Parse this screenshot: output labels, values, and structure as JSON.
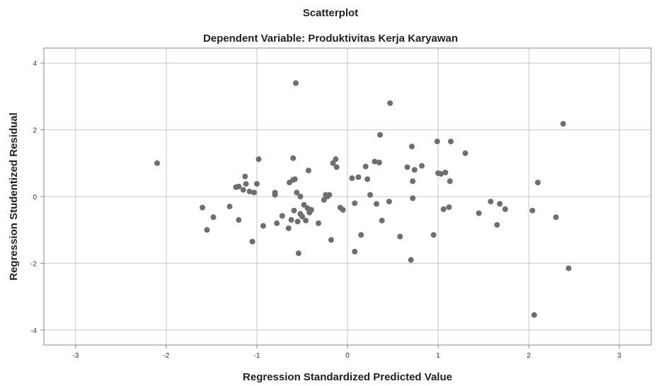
{
  "chart_data": {
    "type": "scatter",
    "title": "Scatterplot",
    "subtitle": "Dependent Variable: Produktivitas Kerja Karyawan",
    "xlabel": "Regression Standardized Predicted Value",
    "ylabel": "Regression Studentized Residual",
    "xlim": [
      -3.35,
      3.35
    ],
    "ylim": [
      -4.45,
      4.45
    ],
    "xticks": [
      -3,
      -2,
      -1,
      0,
      1,
      2,
      3
    ],
    "yticks": [
      -4,
      -2,
      0,
      2,
      4
    ],
    "grid": true,
    "point_color": "#6e6e6e",
    "grid_color": "#c8c8c8",
    "points": [
      [
        -2.1,
        1.0
      ],
      [
        -1.6,
        -0.33
      ],
      [
        -1.55,
        -1.0
      ],
      [
        -1.48,
        -0.62
      ],
      [
        -1.3,
        -0.3
      ],
      [
        -1.23,
        0.28
      ],
      [
        -1.2,
        0.3
      ],
      [
        -1.2,
        -0.7
      ],
      [
        -1.15,
        0.2
      ],
      [
        -1.13,
        0.6
      ],
      [
        -1.12,
        0.38
      ],
      [
        -1.08,
        0.15
      ],
      [
        -1.05,
        -1.35
      ],
      [
        -1.03,
        0.12
      ],
      [
        -1.0,
        0.38
      ],
      [
        -0.98,
        1.12
      ],
      [
        -0.93,
        -0.88
      ],
      [
        -0.8,
        0.12
      ],
      [
        -0.8,
        0.05
      ],
      [
        -0.78,
        -0.8
      ],
      [
        -0.72,
        -0.58
      ],
      [
        -0.65,
        -0.95
      ],
      [
        -0.64,
        0.42
      ],
      [
        -0.62,
        -0.7
      ],
      [
        -0.6,
        1.15
      ],
      [
        -0.6,
        0.5
      ],
      [
        -0.59,
        -0.42
      ],
      [
        -0.58,
        0.52
      ],
      [
        -0.57,
        3.4
      ],
      [
        -0.56,
        0.12
      ],
      [
        -0.55,
        -0.75
      ],
      [
        -0.54,
        -1.7
      ],
      [
        -0.52,
        -0.52
      ],
      [
        -0.52,
        0.0
      ],
      [
        -0.5,
        -0.6
      ],
      [
        -0.48,
        -0.25
      ],
      [
        -0.46,
        -0.72
      ],
      [
        -0.44,
        -0.35
      ],
      [
        -0.43,
        0.78
      ],
      [
        -0.42,
        -0.48
      ],
      [
        -0.4,
        -0.4
      ],
      [
        -0.32,
        -0.8
      ],
      [
        -0.26,
        -0.1
      ],
      [
        -0.24,
        0.05
      ],
      [
        -0.22,
        0.0
      ],
      [
        -0.2,
        0.05
      ],
      [
        -0.18,
        -1.3
      ],
      [
        -0.16,
        1.0
      ],
      [
        -0.13,
        1.12
      ],
      [
        -0.12,
        0.88
      ],
      [
        -0.08,
        -0.33
      ],
      [
        -0.05,
        -0.4
      ],
      [
        0.05,
        0.55
      ],
      [
        0.08,
        -1.65
      ],
      [
        0.08,
        -0.2
      ],
      [
        0.12,
        0.58
      ],
      [
        0.15,
        -1.15
      ],
      [
        0.2,
        0.9
      ],
      [
        0.22,
        0.52
      ],
      [
        0.25,
        0.05
      ],
      [
        0.3,
        1.05
      ],
      [
        0.32,
        -0.22
      ],
      [
        0.35,
        1.02
      ],
      [
        0.36,
        1.85
      ],
      [
        0.38,
        -0.72
      ],
      [
        0.46,
        -0.15
      ],
      [
        0.47,
        2.8
      ],
      [
        0.58,
        -1.2
      ],
      [
        0.66,
        0.88
      ],
      [
        0.7,
        -1.9
      ],
      [
        0.71,
        1.5
      ],
      [
        0.72,
        0.46
      ],
      [
        0.72,
        -0.05
      ],
      [
        0.74,
        0.8
      ],
      [
        0.82,
        0.92
      ],
      [
        0.95,
        -1.15
      ],
      [
        0.99,
        1.65
      ],
      [
        1.0,
        0.7
      ],
      [
        1.03,
        0.68
      ],
      [
        1.06,
        -0.38
      ],
      [
        1.08,
        0.72
      ],
      [
        1.12,
        -0.32
      ],
      [
        1.13,
        0.46
      ],
      [
        1.14,
        1.65
      ],
      [
        1.3,
        1.3
      ],
      [
        1.45,
        -0.5
      ],
      [
        1.58,
        -0.15
      ],
      [
        1.65,
        -0.85
      ],
      [
        1.68,
        -0.22
      ],
      [
        1.74,
        -0.38
      ],
      [
        2.04,
        -0.42
      ],
      [
        2.06,
        -3.55
      ],
      [
        2.1,
        0.42
      ],
      [
        2.3,
        -0.62
      ],
      [
        2.38,
        2.18
      ],
      [
        2.44,
        -2.15
      ]
    ]
  }
}
